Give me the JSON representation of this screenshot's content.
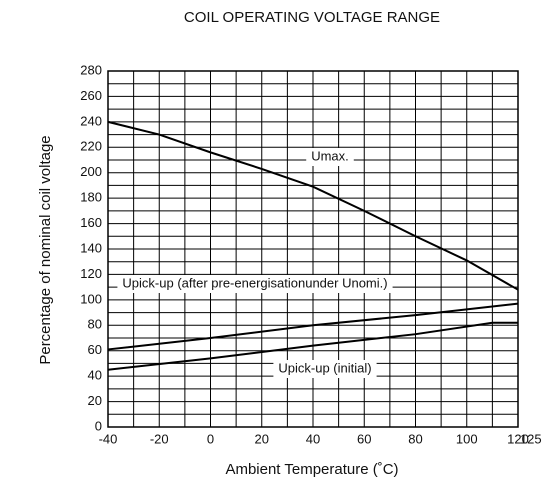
{
  "chart_data": {
    "type": "line",
    "title": "COIL OPERATING VOLTAGE RANGE",
    "x_label": "Ambient Temperature (˚C)",
    "y_label": "Percentage of nominal coil voltage",
    "xlim": [
      -40,
      120
    ],
    "ylim": [
      0,
      280
    ],
    "xticks": [
      -40,
      -20,
      0,
      20,
      40,
      60,
      80,
      100,
      120,
      125
    ],
    "yticks": [
      0,
      20,
      40,
      60,
      80,
      100,
      120,
      140,
      160,
      180,
      200,
      220,
      240,
      260,
      280
    ],
    "x_minor_ticks": [
      -30,
      -10,
      10,
      30,
      50,
      70,
      90,
      110
    ],
    "y_minor_ticks": [
      10,
      30,
      50,
      70,
      90,
      110,
      130,
      150,
      170,
      190,
      210,
      230,
      250,
      270
    ],
    "grid": true,
    "series": [
      {
        "name": "Umax.",
        "color": "#000000",
        "x": [
          -40,
          -20,
          0,
          20,
          40,
          60,
          80,
          100,
          120
        ],
        "values": [
          240,
          230,
          216,
          203,
          189,
          170,
          150,
          131,
          108
        ]
      },
      {
        "name": "Upick-up (after pre-energisationunder Unomi.)",
        "color": "#000000",
        "x": [
          -40,
          0,
          40,
          80,
          120
        ],
        "values": [
          61,
          70,
          80,
          88,
          97
        ]
      },
      {
        "name": "Upick-up (initial)",
        "color": "#000000",
        "x": [
          -40,
          0,
          40,
          80,
          110,
          120
        ],
        "values": [
          45,
          54,
          64,
          73,
          82,
          82
        ]
      }
    ]
  }
}
